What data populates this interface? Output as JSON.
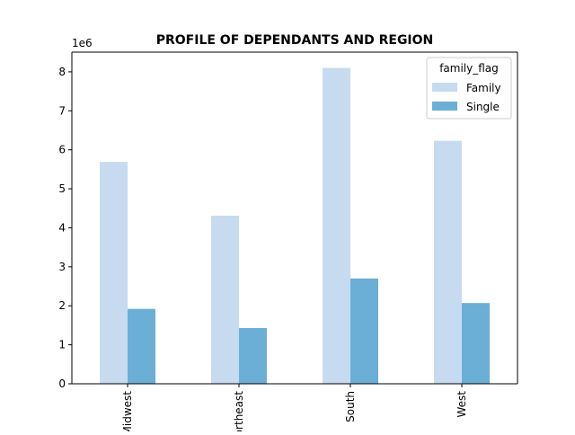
{
  "chart_data": {
    "type": "bar",
    "title": "PROFILE OF DEPENDANTS AND REGION",
    "categories": [
      "Midwest",
      "Northeast",
      "South",
      "West"
    ],
    "category_labels_visible": [
      "dwest",
      "theast",
      "South",
      "West"
    ],
    "series": [
      {
        "name": "Family",
        "color": "#c6dbef",
        "values": [
          5690000,
          4310000,
          8100000,
          6230000
        ]
      },
      {
        "name": "Single",
        "color": "#6baed6",
        "values": [
          1920000,
          1430000,
          2700000,
          2070000
        ]
      }
    ],
    "legend_title": "family_flag",
    "legend_position": "top-right",
    "y_offset_label": "1e6",
    "y_scale": 1000000,
    "y_ticks": [
      0,
      1,
      2,
      3,
      4,
      5,
      6,
      7,
      8
    ],
    "ylim": [
      0,
      8505000
    ],
    "xlabel": "",
    "ylabel": "",
    "grid": false,
    "x_tick_rotation": 90
  }
}
